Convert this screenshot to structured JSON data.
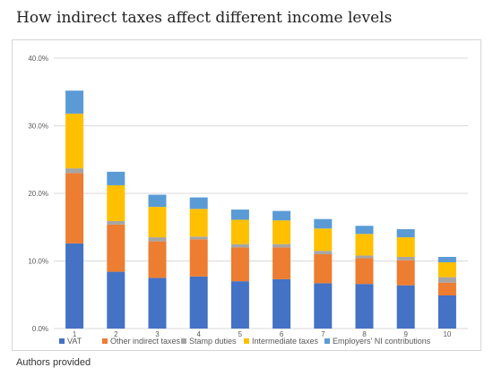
{
  "page": {
    "title": "How indirect taxes affect different income levels",
    "caption": "Authors provided"
  },
  "chart_data": {
    "type": "bar",
    "stacked": true,
    "categories": [
      "1",
      "2",
      "3",
      "4",
      "5",
      "6",
      "7",
      "8",
      "9",
      "10"
    ],
    "series": [
      {
        "name": "VAT",
        "color": "#4472C4",
        "values": [
          12.6,
          8.4,
          7.5,
          7.7,
          7.0,
          7.3,
          6.7,
          6.6,
          6.4,
          4.9
        ]
      },
      {
        "name": "Other indirect taxes",
        "color": "#ED7D31",
        "values": [
          10.4,
          7.0,
          5.4,
          5.5,
          5.0,
          4.7,
          4.3,
          3.8,
          3.7,
          1.9
        ]
      },
      {
        "name": "Stamp duties",
        "color": "#A5A5A5",
        "values": [
          0.7,
          0.5,
          0.6,
          0.4,
          0.5,
          0.5,
          0.5,
          0.4,
          0.5,
          0.8
        ]
      },
      {
        "name": "Intermediate taxes",
        "color": "#FFC000",
        "values": [
          8.1,
          5.3,
          4.5,
          4.1,
          3.6,
          3.5,
          3.3,
          3.2,
          2.9,
          2.2
        ]
      },
      {
        "name": "Employers' NI contributions",
        "color": "#5B9BD5",
        "values": [
          3.4,
          2.0,
          1.8,
          1.7,
          1.5,
          1.4,
          1.4,
          1.2,
          1.2,
          0.8
        ]
      }
    ],
    "yticks": [
      "0.0%",
      "10.0%",
      "20.0%",
      "30.0%",
      "40.0%"
    ],
    "ylim": [
      0,
      40
    ],
    "grid": true,
    "legend": "bottom"
  }
}
